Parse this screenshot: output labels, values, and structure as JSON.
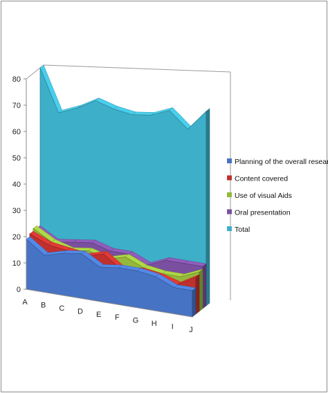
{
  "chart_data": {
    "type": "area",
    "variant": "3d",
    "categories": [
      "A",
      "B",
      "C",
      "D",
      "E",
      "F",
      "G",
      "H",
      "I",
      "J"
    ],
    "ylim": [
      0,
      80
    ],
    "y_ticks": [
      "0",
      "10",
      "20",
      "30",
      "40",
      "50",
      "60",
      "70",
      "80"
    ],
    "grid": false,
    "legend_position": "right",
    "series": [
      {
        "name": "Planning of the overall research",
        "color": "#4673C4",
        "values": [
          19,
          14,
          16,
          17,
          13,
          14,
          14,
          13,
          10,
          10
        ]
      },
      {
        "name": "Content covered",
        "color": "#C0312E",
        "values": [
          20,
          17,
          16,
          15,
          17,
          12,
          13,
          12,
          10,
          14
        ]
      },
      {
        "name": "Use of visual Aids",
        "color": "#94B83B",
        "values": [
          21,
          17,
          15,
          16,
          14,
          16,
          13,
          12,
          12,
          15
        ]
      },
      {
        "name": "Oral presentation",
        "color": "#7A4FA0",
        "values": [
          20,
          16,
          17,
          18,
          16,
          16,
          13,
          16,
          16,
          16
        ]
      },
      {
        "name": "Total",
        "color": "#3EAFC9",
        "values": [
          80,
          64,
          67,
          71,
          69,
          68,
          69,
          72,
          66,
          74
        ]
      }
    ]
  }
}
